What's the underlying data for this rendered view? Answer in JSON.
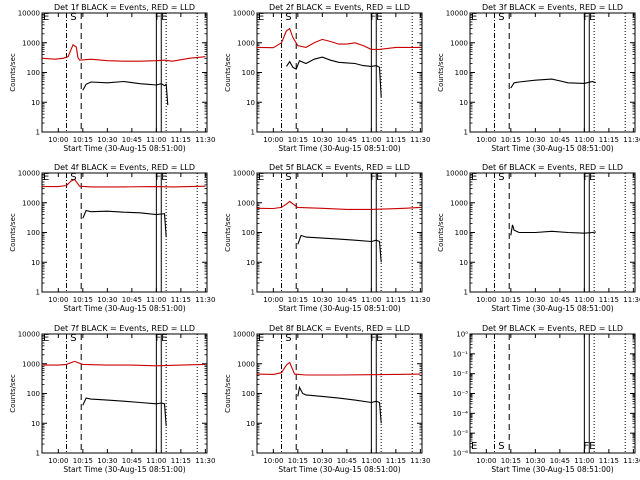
{
  "common": {
    "xlabel": "Start Time (30-Aug-15 08:51:00)",
    "ylabel": "Counts/sec",
    "xticks": [
      "10:00",
      "10:15",
      "10:30",
      "10:45",
      "11:00",
      "11:15",
      "11:30"
    ],
    "yticks_std": [
      "1",
      "10",
      "100",
      "1000",
      "10000"
    ],
    "yticks_det9": [
      "10⁰",
      "10⁻¹",
      "10⁻²",
      "10⁻³",
      "10⁻⁴",
      "10⁻⁵",
      "10⁻⁶"
    ],
    "marker_labels": {
      "E": "E",
      "S": "S",
      "FE": "FE"
    },
    "colors": {
      "events": "#000000",
      "lld": "#cc0000"
    }
  },
  "chart_data": [
    {
      "type": "line",
      "title": "Det 1f BLACK = Events, RED = LLD",
      "xlabel": "Start Time (30-Aug-15 08:51:00)",
      "ylabel": "Counts/sec",
      "scale": "log",
      "ylim": [
        1,
        10000
      ],
      "xlim": [
        "09:50",
        "11:31"
      ],
      "markers": {
        "E_dashdot": "10:05",
        "S_dashed": "10:14",
        "FE_solid": [
          "11:00",
          "11:03"
        ],
        "dotted": [
          "11:06",
          "11:25"
        ]
      },
      "series": [
        {
          "name": "LLD",
          "color": "#cc0000",
          "x": [
            "09:50",
            "09:58",
            "10:03",
            "10:06",
            "10:09",
            "10:11",
            "10:12",
            "10:13",
            "10:20",
            "10:30",
            "10:40",
            "10:50",
            "11:00",
            "11:05",
            "11:10",
            "11:20",
            "11:30"
          ],
          "values": [
            300,
            280,
            300,
            340,
            850,
            720,
            320,
            260,
            280,
            250,
            240,
            240,
            250,
            260,
            240,
            300,
            340
          ]
        },
        {
          "name": "Events",
          "color": "#000000",
          "x": [
            "10:15",
            "10:17",
            "10:20",
            "10:30",
            "10:40",
            "10:50",
            "10:55",
            "11:00",
            "11:03",
            "11:05",
            "11:06",
            "11:07"
          ],
          "values": [
            25,
            40,
            48,
            45,
            50,
            42,
            40,
            38,
            42,
            36,
            40,
            8
          ]
        }
      ]
    },
    {
      "type": "line",
      "title": "Det 2f BLACK = Events, RED = LLD",
      "xlabel": "Start Time (30-Aug-15 08:51:00)",
      "ylabel": "Counts/sec",
      "scale": "log",
      "ylim": [
        1,
        10000
      ],
      "xlim": [
        "09:50",
        "11:31"
      ],
      "markers": {
        "E_dashdot": "10:05",
        "S_dashed": "10:14",
        "FE_solid": [
          "11:00",
          "11:03"
        ],
        "dotted": [
          "11:06",
          "11:25"
        ]
      },
      "series": [
        {
          "name": "LLD",
          "color": "#cc0000",
          "x": [
            "09:50",
            "10:00",
            "10:05",
            "10:08",
            "10:10",
            "10:12",
            "10:15",
            "10:20",
            "10:25",
            "10:30",
            "10:35",
            "10:40",
            "10:45",
            "10:50",
            "10:55",
            "11:00",
            "11:05",
            "11:15",
            "11:30"
          ],
          "values": [
            700,
            680,
            1000,
            2500,
            3000,
            1500,
            800,
            700,
            1000,
            1300,
            1100,
            900,
            900,
            1000,
            800,
            600,
            600,
            700,
            700
          ]
        },
        {
          "name": "Events",
          "color": "#000000",
          "x": [
            "10:08",
            "10:10",
            "10:12",
            "10:14",
            "10:16",
            "10:20",
            "10:25",
            "10:30",
            "10:35",
            "10:40",
            "10:45",
            "10:50",
            "10:55",
            "11:00",
            "11:03",
            "11:05",
            "11:06"
          ],
          "values": [
            160,
            230,
            150,
            130,
            250,
            200,
            280,
            330,
            260,
            220,
            210,
            200,
            170,
            160,
            170,
            150,
            15
          ]
        }
      ]
    },
    {
      "type": "line",
      "title": "Det 3f BLACK = Events, RED = LLD",
      "xlabel": "Start Time (30-Aug-15 08:51:00)",
      "ylabel": "Counts/sec",
      "scale": "log",
      "ylim": [
        1,
        10000
      ],
      "xlim": [
        "09:50",
        "11:31"
      ],
      "markers": {
        "E_dashdot": "10:05",
        "S_dashed": "10:14",
        "FE_solid": [
          "11:00",
          "11:03"
        ],
        "dotted": [
          "11:06",
          "11:25"
        ]
      },
      "series": [
        {
          "name": "Events",
          "color": "#000000",
          "x": [
            "10:15",
            "10:17",
            "10:20",
            "10:30",
            "10:40",
            "10:45",
            "10:50",
            "11:00",
            "11:05",
            "11:07"
          ],
          "values": [
            30,
            45,
            48,
            55,
            60,
            52,
            45,
            43,
            50,
            45
          ]
        }
      ]
    },
    {
      "type": "line",
      "title": "Det 4f BLACK = Events, RED = LLD",
      "xlabel": "Start Time (30-Aug-15 08:51:00)",
      "ylabel": "Counts/sec",
      "scale": "log",
      "ylim": [
        1,
        10000
      ],
      "xlim": [
        "09:50",
        "11:31"
      ],
      "markers": {
        "E_dashdot": "10:05",
        "S_dashed": "10:14",
        "FE_solid": [
          "11:00",
          "11:03"
        ],
        "dotted": [
          "11:06",
          "11:25"
        ]
      },
      "series": [
        {
          "name": "LLD",
          "color": "#cc0000",
          "x": [
            "09:50",
            "10:00",
            "10:05",
            "10:08",
            "10:10",
            "10:13",
            "10:20",
            "10:40",
            "11:00",
            "11:10",
            "11:30"
          ],
          "values": [
            3500,
            3500,
            3800,
            5500,
            6000,
            3600,
            3400,
            3400,
            3500,
            3400,
            3600
          ]
        },
        {
          "name": "Events",
          "color": "#000000",
          "x": [
            "10:15",
            "10:17",
            "10:20",
            "10:30",
            "10:40",
            "10:50",
            "11:00",
            "11:03",
            "11:05",
            "11:06"
          ],
          "values": [
            300,
            550,
            500,
            520,
            480,
            460,
            400,
            420,
            430,
            70
          ]
        }
      ]
    },
    {
      "type": "line",
      "title": "Det 5f BLACK = Events, RED = LLD",
      "xlabel": "Start Time (30-Aug-15 08:51:00)",
      "ylabel": "Counts/sec",
      "scale": "log",
      "ylim": [
        1,
        10000
      ],
      "xlim": [
        "09:50",
        "11:31"
      ],
      "markers": {
        "E_dashdot": "10:05",
        "S_dashed": "10:14",
        "FE_solid": [
          "11:00",
          "11:03"
        ],
        "dotted": [
          "11:06",
          "11:25"
        ]
      },
      "series": [
        {
          "name": "LLD",
          "color": "#cc0000",
          "x": [
            "09:50",
            "10:00",
            "10:05",
            "10:08",
            "10:10",
            "10:15",
            "10:30",
            "10:45",
            "11:00",
            "11:10",
            "11:20",
            "11:30"
          ],
          "values": [
            650,
            640,
            700,
            900,
            1100,
            700,
            650,
            600,
            600,
            620,
            650,
            700
          ]
        },
        {
          "name": "Events",
          "color": "#000000",
          "x": [
            "10:15",
            "10:17",
            "10:20",
            "10:30",
            "10:40",
            "10:50",
            "11:00",
            "11:03",
            "11:05",
            "11:06"
          ],
          "values": [
            40,
            80,
            70,
            65,
            60,
            55,
            50,
            55,
            50,
            10
          ]
        }
      ]
    },
    {
      "type": "line",
      "title": "Det 6f BLACK = Events, RED = LLD",
      "xlabel": "Start Time (30-Aug-15 08:51:00)",
      "ylabel": "Counts/sec",
      "scale": "log",
      "ylim": [
        1,
        10000
      ],
      "xlim": [
        "09:50",
        "11:31"
      ],
      "markers": {
        "E_dashdot": "10:05",
        "S_dashed": "10:14",
        "FE_solid": [
          "11:00",
          "11:03"
        ],
        "dotted": [
          "11:06",
          "11:25"
        ]
      },
      "series": [
        {
          "name": "Events",
          "color": "#000000",
          "x": [
            "10:15",
            "10:16",
            "10:17",
            "10:20",
            "10:30",
            "10:40",
            "10:50",
            "11:00",
            "11:05",
            "11:07"
          ],
          "values": [
            80,
            180,
            120,
            100,
            100,
            110,
            100,
            95,
            100,
            105
          ]
        }
      ]
    },
    {
      "type": "line",
      "title": "Det 7f BLACK = Events, RED = LLD",
      "xlabel": "Start Time (30-Aug-15 08:51:00)",
      "ylabel": "Counts/sec",
      "scale": "log",
      "ylim": [
        1,
        10000
      ],
      "xlim": [
        "09:50",
        "11:31"
      ],
      "markers": {
        "E_dashdot": "10:05",
        "S_dashed": "10:14",
        "FE_solid": [
          "11:00",
          "11:03"
        ],
        "dotted": [
          "11:06",
          "11:25"
        ]
      },
      "series": [
        {
          "name": "LLD",
          "color": "#cc0000",
          "x": [
            "09:50",
            "10:00",
            "10:05",
            "10:08",
            "10:10",
            "10:15",
            "10:30",
            "10:45",
            "11:00",
            "11:15",
            "11:30"
          ],
          "values": [
            900,
            900,
            950,
            1100,
            1200,
            950,
            900,
            900,
            850,
            900,
            950
          ]
        },
        {
          "name": "Events",
          "color": "#000000",
          "x": [
            "10:15",
            "10:17",
            "10:20",
            "10:30",
            "10:40",
            "10:50",
            "11:00",
            "11:03",
            "11:05",
            "11:06"
          ],
          "values": [
            40,
            70,
            65,
            60,
            55,
            50,
            45,
            48,
            45,
            8
          ]
        }
      ]
    },
    {
      "type": "line",
      "title": "Det 8f BLACK = Events, RED = LLD",
      "xlabel": "Start Time (30-Aug-15 08:51:00)",
      "ylabel": "Counts/sec",
      "scale": "log",
      "ylim": [
        1,
        10000
      ],
      "xlim": [
        "09:50",
        "11:31"
      ],
      "markers": {
        "E_dashdot": "10:05",
        "S_dashed": "10:14",
        "FE_solid": [
          "11:00",
          "11:03"
        ],
        "dotted": [
          "11:06",
          "11:25"
        ]
      },
      "series": [
        {
          "name": "LLD",
          "color": "#cc0000",
          "x": [
            "09:50",
            "10:00",
            "10:05",
            "10:08",
            "10:10",
            "10:13",
            "10:20",
            "10:40",
            "11:00",
            "11:15",
            "11:30"
          ],
          "values": [
            450,
            440,
            500,
            900,
            1100,
            450,
            420,
            420,
            430,
            440,
            450
          ]
        },
        {
          "name": "Events",
          "color": "#000000",
          "x": [
            "10:15",
            "10:16",
            "10:18",
            "10:20",
            "10:30",
            "10:40",
            "10:50",
            "11:00",
            "11:03",
            "11:05",
            "11:06"
          ],
          "values": [
            80,
            160,
            100,
            90,
            80,
            70,
            60,
            50,
            55,
            50,
            10
          ]
        }
      ]
    },
    {
      "type": "line",
      "title": "Det 9f BLACK = Events, RED = LLD",
      "xlabel": "Start Time (30-Aug-15 08:51:00)",
      "ylabel": "",
      "scale": "log",
      "ylim": [
        1e-06,
        1
      ],
      "xlim": [
        "09:50",
        "11:31"
      ],
      "markers": {
        "E_dashdot": "10:05",
        "S_dashed": "10:14",
        "FE_solid": [
          "11:00",
          "11:03"
        ],
        "dotted": [
          "11:06",
          "11:25"
        ]
      },
      "series": []
    }
  ]
}
